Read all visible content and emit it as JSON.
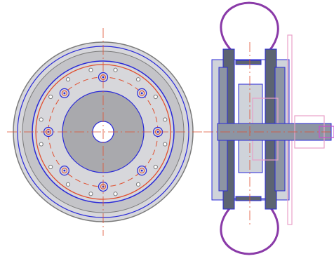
{
  "drawing": {
    "views": [
      "front-view",
      "section-view"
    ],
    "colors": {
      "background": "#ffffff",
      "outline_blue": "#2a2ad8",
      "outline_grey": "#7a7a7a",
      "fill_light": "#d7d7db",
      "fill_mid": "#c4c4c8",
      "fill_hub": "#a9a9ad",
      "fill_section_dark": "#5c6472",
      "fill_section_mid": "#8d95a3",
      "fill_section_light": "#cfd3da",
      "centerline_red": "#e05030",
      "tire_purple": "#8a3aa8",
      "shaft_magenta": "#c84fd0",
      "pink_hidden": "#e8a0c8"
    },
    "front_view": {
      "bolt_count_inner": 8,
      "bolt_count_outer": 16
    }
  }
}
